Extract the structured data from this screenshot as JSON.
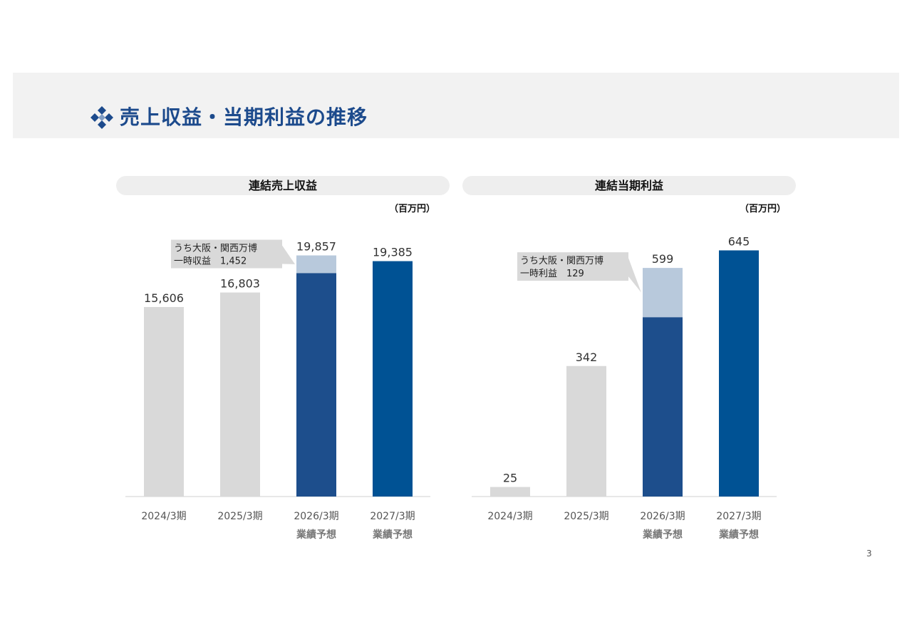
{
  "slide": {
    "title": "売上収益・当期利益の推移",
    "page_number": "3",
    "colors": {
      "header_band": "#f2f2f2",
      "title_text": "#1c4a8c",
      "past_bar": "#d9d9d9",
      "forecast_base": "#1d4e8c",
      "forecast_special": "#b8c9dc",
      "forecast_full": "#005294",
      "annotation_box": "#d9d9d9"
    },
    "icons": [
      "diamond-cluster-icon"
    ]
  },
  "panels": [
    {
      "title": "連結売上収益",
      "unit": "（百万円）"
    },
    {
      "title": "連結当期利益",
      "unit": "（百万円）"
    }
  ],
  "chart_data": [
    {
      "type": "bar",
      "title": "連結売上収益",
      "unit": "（百万円）",
      "categories": [
        "2024/3期",
        "2025/3期",
        "2026/3期",
        "2027/3期"
      ],
      "category_sublabels": [
        "",
        "",
        "業績予想",
        "業績予想"
      ],
      "values": [
        15606,
        16803,
        19857,
        19385
      ],
      "value_labels": [
        "15,606",
        "16,803",
        "19,857",
        "19,385"
      ],
      "stack_top": [
        0,
        0,
        1452,
        0
      ],
      "annotation": {
        "line1": "うち大阪・関西万博",
        "line2": "一時収益　1,452",
        "category_index": 2
      },
      "ylim": [
        0,
        22000
      ]
    },
    {
      "type": "bar",
      "title": "連結当期利益",
      "unit": "（百万円）",
      "categories": [
        "2024/3期",
        "2025/3期",
        "2026/3期",
        "2027/3期"
      ],
      "category_sublabels": [
        "",
        "",
        "業績予想",
        "業績予想"
      ],
      "values": [
        25,
        342,
        599,
        645
      ],
      "value_labels": [
        "25",
        "342",
        "599",
        "645"
      ],
      "stack_top": [
        0,
        0,
        129,
        0
      ],
      "annotation": {
        "line1": "うち大阪・関西万博",
        "line2": "一時利益　129",
        "category_index": 2
      },
      "ylim": [
        0,
        700
      ]
    }
  ]
}
